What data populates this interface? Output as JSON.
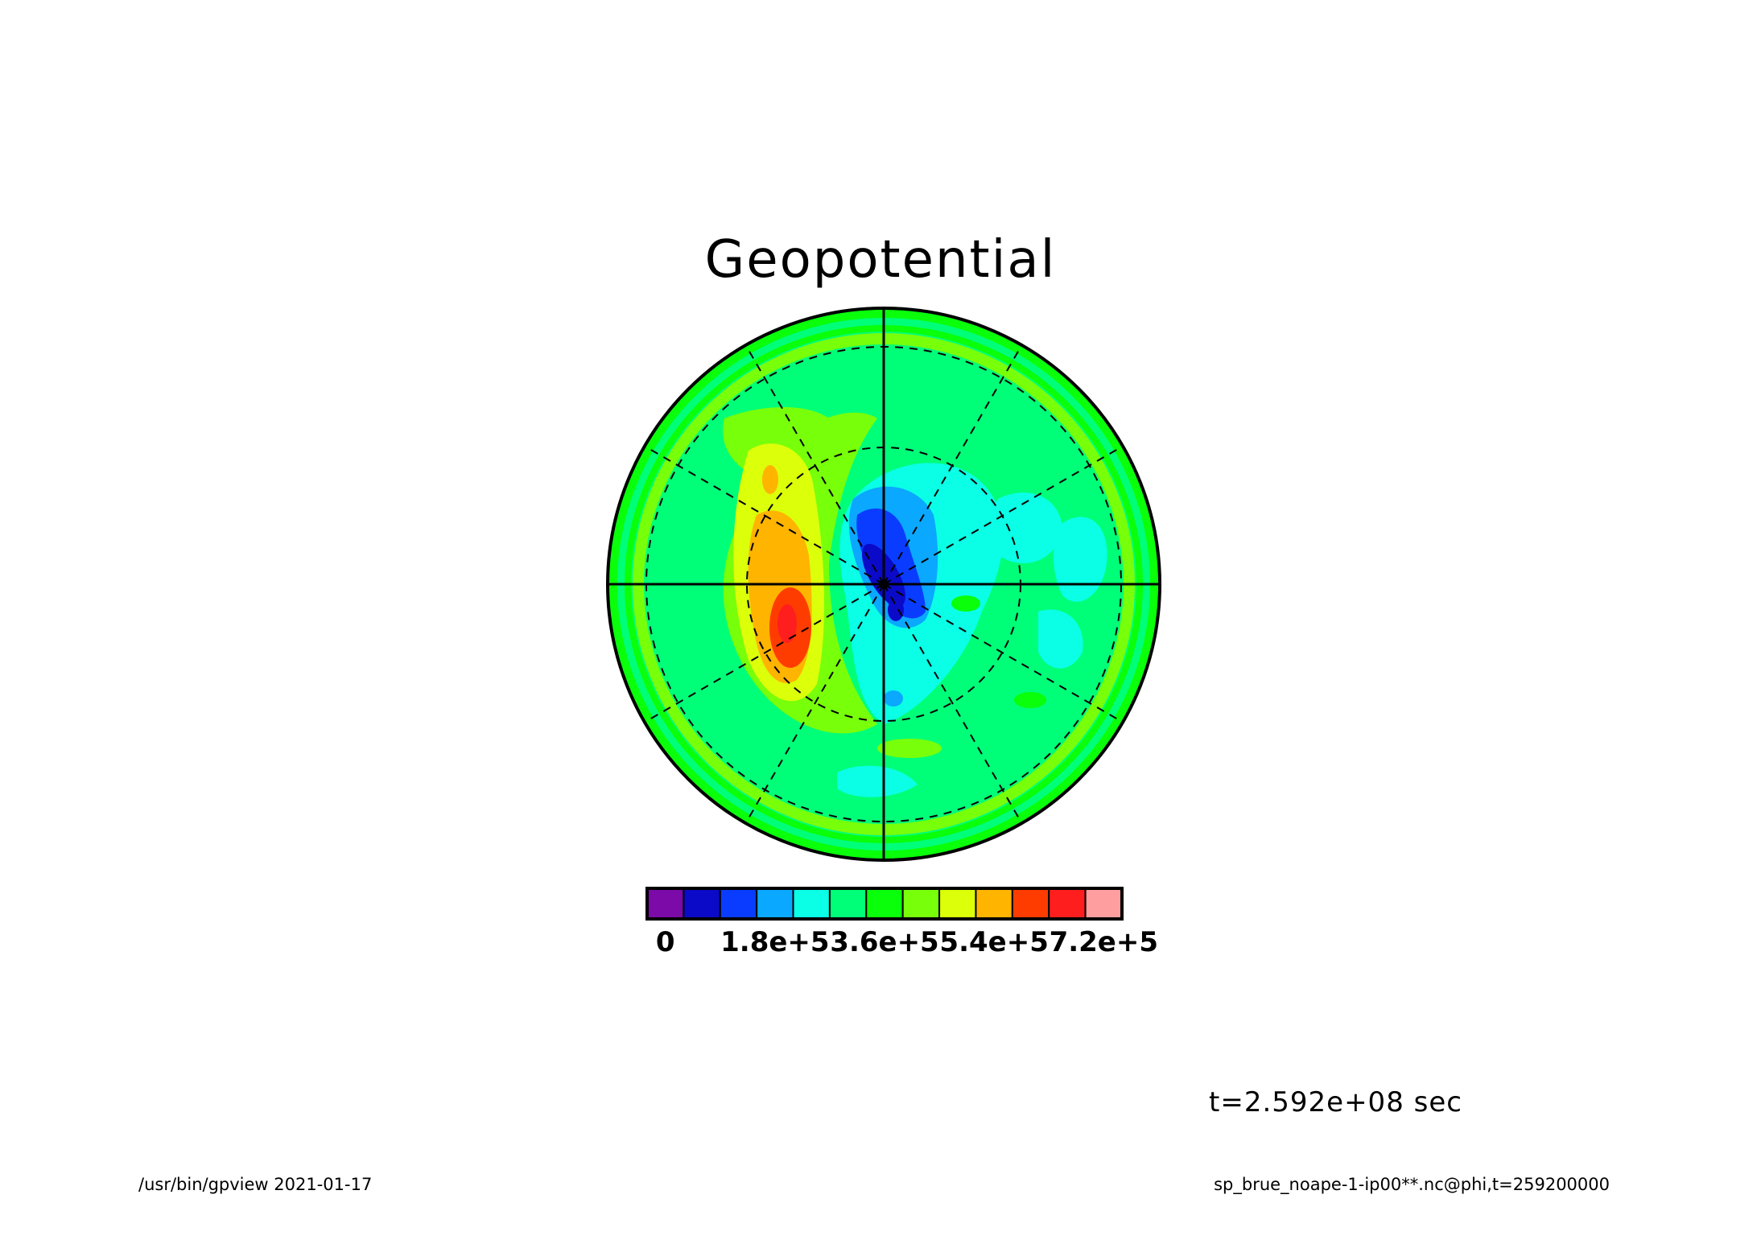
{
  "title": "Geopotential",
  "time_label": "t=2.592e+08 sec",
  "footer": {
    "left": "/usr/bin/gpview   2021-01-17",
    "right": "sp_brue_noape-1-ip00**.nc@phi,t=259200000"
  },
  "chart_data": {
    "type": "heatmap",
    "projection": "polar",
    "title": "Geopotential",
    "colorbar": {
      "colors": [
        "#7b0aa8",
        "#0a0ac8",
        "#0a3cff",
        "#0aa8ff",
        "#0affe6",
        "#00ff78",
        "#0aff0a",
        "#78ff0a",
        "#dcff0a",
        "#ffb400",
        "#ff3c00",
        "#ff1e1e",
        "#ff9e9e"
      ],
      "tick_labels": [
        "0",
        "1.8e+5",
        "3.6e+5",
        "5.4e+5",
        "7.2e+5"
      ],
      "tick_values": [
        0,
        180000,
        360000,
        540000,
        720000
      ],
      "range": [
        0,
        780000
      ],
      "level_step": 60000
    },
    "background_level_color": "#00ff78",
    "features": [
      {
        "kind": "low",
        "description": "blue minimum near pole",
        "min_value": 60000
      },
      {
        "kind": "high",
        "description": "red maximum west of pole",
        "max_value": 660000
      }
    ],
    "grid": {
      "meridians_deg": 30,
      "latitude_circles": 3
    }
  }
}
